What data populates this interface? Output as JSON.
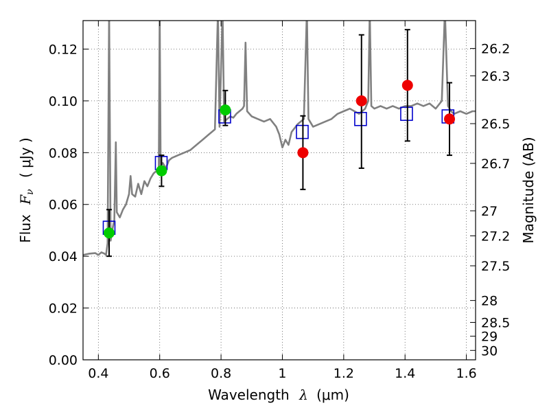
{
  "chart_data": {
    "type": "scatter",
    "xlabel": "Wavelength",
    "xlabel_symbol": "λ",
    "xlabel_unit": "(μm)",
    "ylabel": "Flux",
    "ylabel_symbol": "F",
    "ylabel_subscript": "ν",
    "ylabel_unit": "( μJy )",
    "y2label": "Magnitude (AB)",
    "xlim": [
      0.35,
      1.63
    ],
    "ylim": [
      0.0,
      0.131
    ],
    "grid": true,
    "grid_style": "dotted",
    "x_ticks": [
      0.4,
      0.6,
      0.8,
      1.0,
      1.2,
      1.4,
      1.6
    ],
    "x_tick_labels": [
      "0.4",
      "0.6",
      "0.8",
      "1",
      "1.2",
      "1.4",
      "1.6"
    ],
    "y_ticks": [
      0.0,
      0.02,
      0.04,
      0.06,
      0.08,
      0.1,
      0.12
    ],
    "y_tick_labels": [
      "0.00",
      "0.02",
      "0.04",
      "0.06",
      "0.08",
      "0.10",
      "0.12"
    ],
    "y2_ticks": [
      {
        "label": "26.2",
        "mag": 26.2
      },
      {
        "label": "26.3",
        "mag": 26.3
      },
      {
        "label": "26.5",
        "mag": 26.5
      },
      {
        "label": "26.7",
        "mag": 26.7
      },
      {
        "label": "27",
        "mag": 27.0
      },
      {
        "label": "27.2",
        "mag": 27.2
      },
      {
        "label": "27.5",
        "mag": 27.5
      },
      {
        "label": "28",
        "mag": 28.0
      },
      {
        "label": "28.5",
        "mag": 28.5
      },
      {
        "label": "29",
        "mag": 29.0
      },
      {
        "label": "30",
        "mag": 30.0
      }
    ],
    "colors": {
      "spectrum": "#808080",
      "model_square": "#0000cc",
      "optical_point": "#00cc00",
      "nir_point": "#ee0000",
      "errorbar": "#000000",
      "grid": "#555555"
    },
    "series": [
      {
        "kind": "line",
        "role": "spectrum",
        "points": [
          [
            0.35,
            0.0405
          ],
          [
            0.37,
            0.041
          ],
          [
            0.39,
            0.0412
          ],
          [
            0.4,
            0.0405
          ],
          [
            0.41,
            0.0415
          ],
          [
            0.42,
            0.041
          ],
          [
            0.425,
            0.0405
          ],
          [
            0.43,
            0.045
          ],
          [
            0.435,
            0.135
          ],
          [
            0.44,
            0.046
          ],
          [
            0.445,
            0.05
          ],
          [
            0.452,
            0.054
          ],
          [
            0.457,
            0.084
          ],
          [
            0.46,
            0.057
          ],
          [
            0.47,
            0.055
          ],
          [
            0.48,
            0.058
          ],
          [
            0.49,
            0.06
          ],
          [
            0.5,
            0.064
          ],
          [
            0.505,
            0.071
          ],
          [
            0.51,
            0.064
          ],
          [
            0.52,
            0.063
          ],
          [
            0.53,
            0.068
          ],
          [
            0.54,
            0.064
          ],
          [
            0.55,
            0.069
          ],
          [
            0.56,
            0.067
          ],
          [
            0.57,
            0.07
          ],
          [
            0.58,
            0.072
          ],
          [
            0.59,
            0.073
          ],
          [
            0.597,
            0.074
          ],
          [
            0.6,
            0.135
          ],
          [
            0.603,
            0.075
          ],
          [
            0.61,
            0.076
          ],
          [
            0.62,
            0.074
          ],
          [
            0.63,
            0.077
          ],
          [
            0.64,
            0.078
          ],
          [
            0.66,
            0.079
          ],
          [
            0.68,
            0.08
          ],
          [
            0.7,
            0.081
          ],
          [
            0.72,
            0.083
          ],
          [
            0.74,
            0.085
          ],
          [
            0.76,
            0.087
          ],
          [
            0.78,
            0.089
          ],
          [
            0.79,
            0.135
          ],
          [
            0.795,
            0.09
          ],
          [
            0.805,
            0.135
          ],
          [
            0.81,
            0.092
          ],
          [
            0.82,
            0.093
          ],
          [
            0.83,
            0.094
          ],
          [
            0.84,
            0.0935
          ],
          [
            0.85,
            0.095
          ],
          [
            0.86,
            0.096
          ],
          [
            0.87,
            0.097
          ],
          [
            0.875,
            0.098
          ],
          [
            0.88,
            0.1225
          ],
          [
            0.885,
            0.096
          ],
          [
            0.9,
            0.094
          ],
          [
            0.92,
            0.093
          ],
          [
            0.94,
            0.092
          ],
          [
            0.96,
            0.093
          ],
          [
            0.98,
            0.09
          ],
          [
            0.99,
            0.087
          ],
          [
            1.0,
            0.082
          ],
          [
            1.01,
            0.085
          ],
          [
            1.02,
            0.083
          ],
          [
            1.03,
            0.088
          ],
          [
            1.05,
            0.091
          ],
          [
            1.07,
            0.093
          ],
          [
            1.08,
            0.135
          ],
          [
            1.085,
            0.093
          ],
          [
            1.1,
            0.09
          ],
          [
            1.12,
            0.091
          ],
          [
            1.14,
            0.092
          ],
          [
            1.16,
            0.093
          ],
          [
            1.18,
            0.095
          ],
          [
            1.2,
            0.096
          ],
          [
            1.22,
            0.097
          ],
          [
            1.25,
            0.095
          ],
          [
            1.27,
            0.097
          ],
          [
            1.28,
            0.1
          ],
          [
            1.285,
            0.135
          ],
          [
            1.29,
            0.098
          ],
          [
            1.3,
            0.097
          ],
          [
            1.32,
            0.098
          ],
          [
            1.34,
            0.097
          ],
          [
            1.36,
            0.098
          ],
          [
            1.38,
            0.097
          ],
          [
            1.4,
            0.098
          ],
          [
            1.42,
            0.098
          ],
          [
            1.44,
            0.099
          ],
          [
            1.46,
            0.098
          ],
          [
            1.48,
            0.099
          ],
          [
            1.5,
            0.097
          ],
          [
            1.52,
            0.1
          ],
          [
            1.53,
            0.135
          ],
          [
            1.54,
            0.098
          ],
          [
            1.55,
            0.096
          ],
          [
            1.56,
            0.095
          ],
          [
            1.58,
            0.096
          ],
          [
            1.6,
            0.095
          ],
          [
            1.62,
            0.096
          ],
          [
            1.63,
            0.096
          ]
        ]
      },
      {
        "kind": "markers",
        "role": "model_square",
        "marker": "square",
        "points": [
          [
            0.435,
            0.051
          ],
          [
            0.605,
            0.076
          ],
          [
            0.812,
            0.094
          ],
          [
            1.065,
            0.088
          ],
          [
            1.255,
            0.093
          ],
          [
            1.405,
            0.095
          ],
          [
            1.54,
            0.094
          ]
        ]
      },
      {
        "kind": "markers_with_errors",
        "role": "optical_point",
        "marker": "circle",
        "points": [
          {
            "x": 0.435,
            "y": 0.049,
            "err_low": 0.009,
            "err_high": 0.009
          },
          {
            "x": 0.606,
            "y": 0.073,
            "err_low": 0.006,
            "err_high": 0.006
          },
          {
            "x": 0.814,
            "y": 0.0965,
            "err_low": 0.006,
            "err_high": 0.0075
          }
        ]
      },
      {
        "kind": "markers_with_errors",
        "role": "nir_point",
        "marker": "circle",
        "points": [
          {
            "x": 1.067,
            "y": 0.08,
            "err_low": 0.0142,
            "err_high": 0.0142
          },
          {
            "x": 1.258,
            "y": 0.1,
            "err_low": 0.026,
            "err_high": 0.0255
          },
          {
            "x": 1.408,
            "y": 0.106,
            "err_low": 0.0215,
            "err_high": 0.0215
          },
          {
            "x": 1.545,
            "y": 0.093,
            "err_low": 0.014,
            "err_high": 0.014
          }
        ]
      }
    ]
  }
}
